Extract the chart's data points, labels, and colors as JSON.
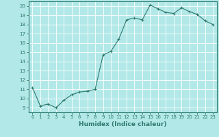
{
  "x": [
    0,
    1,
    2,
    3,
    4,
    5,
    6,
    7,
    8,
    9,
    10,
    11,
    12,
    13,
    14,
    15,
    16,
    17,
    18,
    19,
    20,
    21,
    22,
    23
  ],
  "y": [
    11.2,
    9.2,
    9.4,
    9.0,
    9.8,
    10.4,
    10.7,
    10.8,
    11.0,
    14.7,
    15.1,
    16.4,
    18.5,
    18.7,
    18.5,
    20.1,
    19.7,
    19.3,
    19.2,
    19.8,
    19.4,
    19.1,
    18.4,
    18.0
  ],
  "line_color": "#2d7a6e",
  "marker": "+",
  "markersize": 3,
  "linewidth": 0.8,
  "markeredgewidth": 0.8,
  "bg_color": "#b3e8e8",
  "grid_color": "#ffffff",
  "xlabel": "Humidex (Indice chaleur)",
  "xlim": [
    -0.5,
    23.5
  ],
  "ylim": [
    8.5,
    20.5
  ],
  "yticks": [
    9,
    10,
    11,
    12,
    13,
    14,
    15,
    16,
    17,
    18,
    19,
    20
  ],
  "xticks": [
    0,
    1,
    2,
    3,
    4,
    5,
    6,
    7,
    8,
    9,
    10,
    11,
    12,
    13,
    14,
    15,
    16,
    17,
    18,
    19,
    20,
    21,
    22,
    23
  ],
  "tick_color": "#2d7a6e",
  "label_color": "#2d7a6e",
  "spine_color": "#2d7a6e",
  "axis_fontsize": 6.5,
  "tick_fontsize": 5.0,
  "xlabel_fontsize": 6.5
}
